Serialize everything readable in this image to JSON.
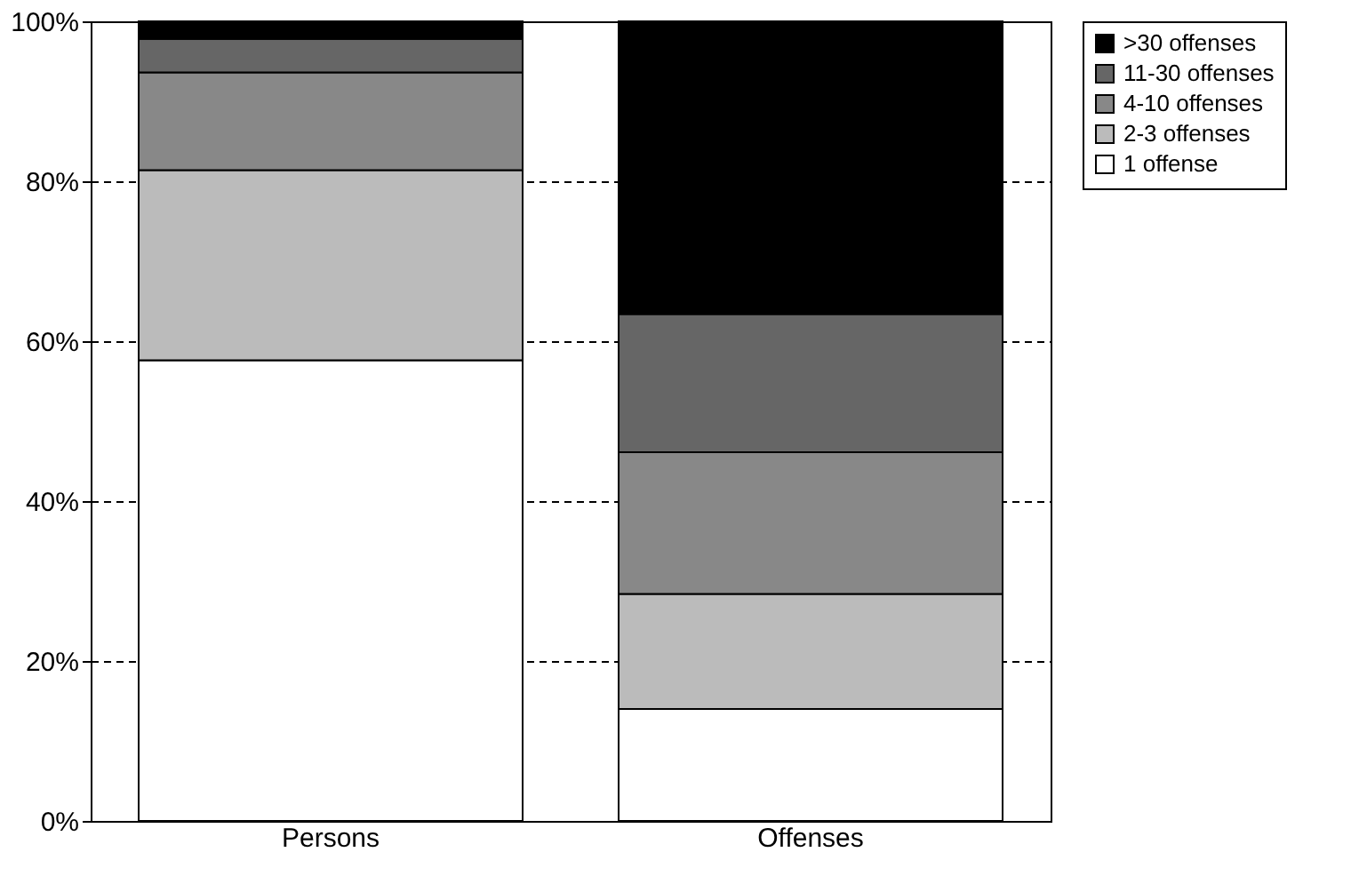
{
  "chart_data": {
    "type": "bar",
    "stacked": true,
    "categories": [
      "Persons",
      "Offenses"
    ],
    "series": [
      {
        "name": "1 offense",
        "color": "#ffffff",
        "values": [
          57.6,
          14.0
        ]
      },
      {
        "name": "2-3 offenses",
        "color": "#bbbbbb",
        "values": [
          23.8,
          14.4
        ]
      },
      {
        "name": "4-10 offenses",
        "color": "#888888",
        "values": [
          12.2,
          17.7
        ]
      },
      {
        "name": "11-30 offenses",
        "color": "#666666",
        "values": [
          4.2,
          17.3
        ]
      },
      {
        "name": ">30 offenses",
        "color": "#000000",
        "values": [
          2.2,
          36.6
        ]
      }
    ],
    "ylim": [
      0,
      100
    ],
    "yticks": [
      {
        "value": 0,
        "label": "0%"
      },
      {
        "value": 20,
        "label": "20%"
      },
      {
        "value": 40,
        "label": "40%"
      },
      {
        "value": 60,
        "label": "60%"
      },
      {
        "value": 80,
        "label": "80%"
      },
      {
        "value": 100,
        "label": "100%"
      }
    ],
    "grid": "y",
    "legend": "right"
  }
}
